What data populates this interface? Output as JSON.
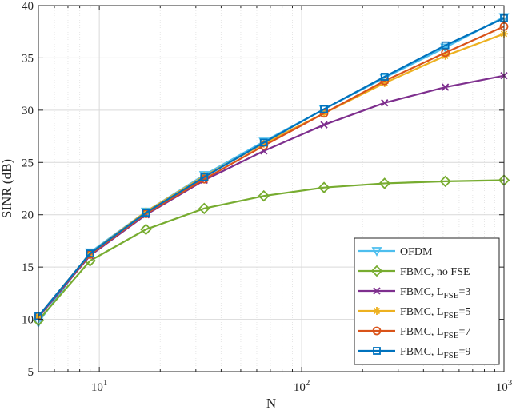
{
  "chart_data": {
    "type": "line",
    "title": "",
    "xlabel": "N",
    "ylabel": "SINR (dB)",
    "xscale": "log",
    "xlim": [
      5,
      1000
    ],
    "ylim": [
      5,
      40
    ],
    "grid": true,
    "legend_position": "bottom-right",
    "x_tick_labels": [
      {
        "value": 10,
        "base": "10",
        "exp": "1"
      },
      {
        "value": 100,
        "base": "10",
        "exp": "2"
      },
      {
        "value": 1000,
        "base": "10",
        "exp": "3"
      }
    ],
    "y_ticks": [
      5,
      10,
      15,
      20,
      25,
      30,
      35,
      40
    ],
    "x": [
      5,
      9,
      17,
      33,
      65,
      129,
      257,
      513,
      1000
    ],
    "series": [
      {
        "name": "OFDM",
        "color": "#4DBEEE",
        "marker": "triangle-down",
        "values": [
          9.7,
          16.4,
          20.3,
          23.8,
          27.0,
          30.1,
          33.1,
          36.0,
          38.9
        ]
      },
      {
        "name": "FBMC, no FSE",
        "color": "#77AC30",
        "marker": "diamond",
        "values": [
          9.9,
          15.6,
          18.6,
          20.6,
          21.8,
          22.6,
          23.0,
          23.2,
          23.3
        ]
      },
      {
        "name": "FBMC, L",
        "sub": "FSE",
        "suffix": "=3",
        "color": "#7E2F8E",
        "marker": "x",
        "values": [
          10.2,
          16.1,
          20.0,
          23.3,
          26.1,
          28.6,
          30.7,
          32.2,
          33.3
        ]
      },
      {
        "name": "FBMC, L",
        "sub": "FSE",
        "suffix": "=5",
        "color": "#EDB120",
        "marker": "asterisk",
        "values": [
          10.3,
          16.3,
          20.3,
          23.7,
          26.8,
          29.7,
          32.6,
          35.2,
          37.3
        ]
      },
      {
        "name": "FBMC, L",
        "sub": "FSE",
        "suffix": "=7",
        "color": "#D95319",
        "marker": "circle",
        "values": [
          10.3,
          16.2,
          20.1,
          23.4,
          26.6,
          29.7,
          32.8,
          35.5,
          38.0
        ]
      },
      {
        "name": "FBMC, L",
        "sub": "FSE",
        "suffix": "=9",
        "color": "#0072BD",
        "marker": "square",
        "values": [
          10.3,
          16.3,
          20.2,
          23.6,
          26.9,
          30.1,
          33.2,
          36.2,
          38.8
        ]
      }
    ]
  }
}
